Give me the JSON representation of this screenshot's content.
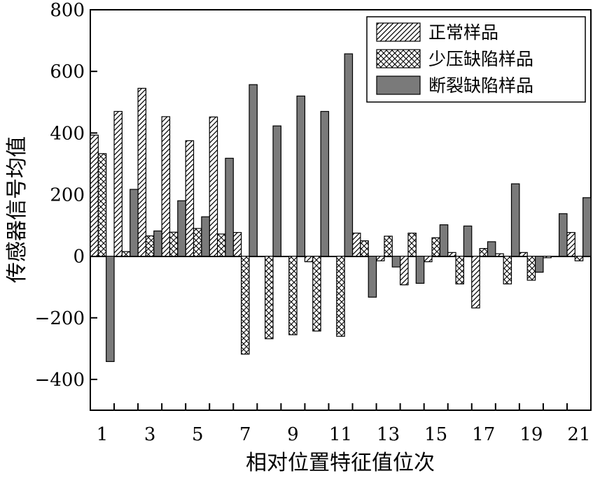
{
  "chart_data": {
    "type": "bar",
    "xlabel": "相对位置特征值位次",
    "ylabel": "传感器信号均值",
    "categories": [
      1,
      2,
      3,
      4,
      5,
      6,
      7,
      8,
      9,
      10,
      11,
      12,
      13,
      14,
      15,
      16,
      17,
      18,
      19,
      20,
      21
    ],
    "x_tick_labels": [
      "1",
      "3",
      "5",
      "7",
      "9",
      "11",
      "13",
      "15",
      "17",
      "19",
      "21"
    ],
    "y_tick_labels": [
      "800",
      "600",
      "400",
      "200",
      "0",
      "−200",
      "−400"
    ],
    "ylim": [
      -500,
      800
    ],
    "y_ticks": [
      800,
      600,
      400,
      200,
      0,
      -200,
      -400
    ],
    "grid": false,
    "legend_position": "top-right",
    "series": [
      {
        "name": "正常样品",
        "pattern": "diagonal-hatch",
        "values": [
          393,
          470,
          545,
          453,
          375,
          452,
          77,
          0,
          0,
          -18,
          0,
          75,
          -15,
          -93,
          -18,
          12,
          -168,
          8,
          12,
          -5,
          77
        ]
      },
      {
        "name": "少压缺陷样品",
        "pattern": "cross-hatch",
        "values": [
          333,
          15,
          66,
          78,
          90,
          72,
          -318,
          -268,
          -255,
          -243,
          -260,
          50,
          65,
          75,
          60,
          -90,
          25,
          -90,
          -78,
          0,
          -15
        ]
      },
      {
        "name": "断裂缺陷样品",
        "pattern": "solid-gray",
        "values": [
          -342,
          217,
          82,
          180,
          128,
          318,
          557,
          423,
          520,
          470,
          657,
          -133,
          -35,
          -88,
          102,
          98,
          47,
          235,
          -52,
          138,
          190
        ]
      }
    ]
  },
  "colors": {
    "solid_fill": "#7a7a7a",
    "stroke": "#000000",
    "background": "#ffffff"
  }
}
